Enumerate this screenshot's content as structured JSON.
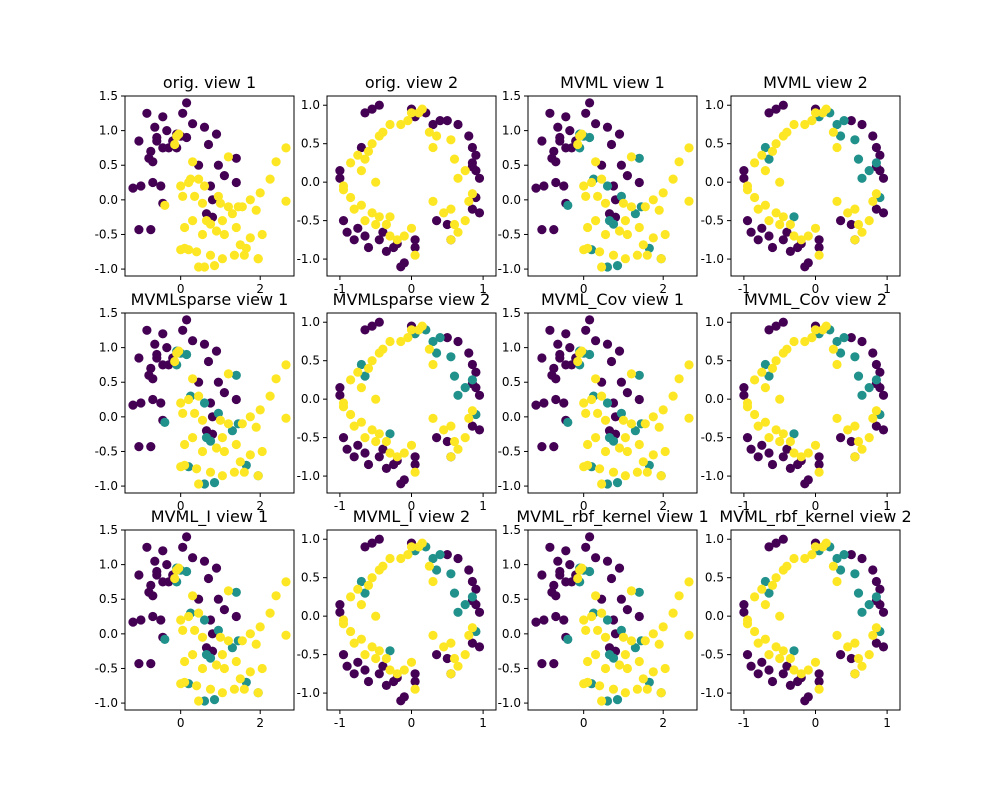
{
  "colors": {
    "class_0": "#440154",
    "class_1": "#21918c",
    "class_2": "#fde725",
    "axis": "#000000"
  },
  "chart_data": [
    {
      "type": "scatter",
      "title": "orig. view 1",
      "view": 1,
      "xticks": [
        0,
        2
      ],
      "yticks": [
        -1.0,
        -0.5,
        0.0,
        0.5,
        1.0,
        1.5
      ],
      "xlim": [
        -1.4,
        2.85
      ],
      "ylim": [
        -1.1,
        1.5
      ],
      "points": []
    },
    {
      "type": "scatter",
      "title": "orig. view 2",
      "view": 2,
      "xticks": [
        -1,
        0,
        1
      ],
      "yticks": [
        -1.0,
        -0.5,
        0.0,
        0.5,
        1.0
      ],
      "xlim": [
        -1.18,
        1.18
      ],
      "ylim": [
        -1.22,
        1.12
      ],
      "points": []
    },
    {
      "type": "scatter",
      "title": "MVML view 1",
      "view": 1,
      "xticks": [
        0,
        2
      ],
      "yticks": [
        -1.0,
        -0.5,
        0.0,
        0.5,
        1.0,
        1.5
      ],
      "xlim": [
        -1.4,
        2.85
      ],
      "ylim": [
        -1.1,
        1.5
      ],
      "points": []
    },
    {
      "type": "scatter",
      "title": "MVML view 2",
      "view": 2,
      "xticks": [
        -1,
        0,
        1
      ],
      "yticks": [
        -1.0,
        -0.5,
        0.0,
        0.5,
        1.0
      ],
      "xlim": [
        -1.18,
        1.18
      ],
      "ylim": [
        -1.22,
        1.12
      ],
      "points": []
    },
    {
      "type": "scatter",
      "title": "MVMLsparse view 1",
      "view": 1,
      "xticks": [
        0,
        2
      ],
      "yticks": [
        -1.0,
        -0.5,
        0.0,
        0.5,
        1.0,
        1.5
      ],
      "xlim": [
        -1.4,
        2.85
      ],
      "ylim": [
        -1.1,
        1.5
      ],
      "points": []
    },
    {
      "type": "scatter",
      "title": "MVMLsparse view 2",
      "view": 2,
      "xticks": [
        -1,
        0,
        1
      ],
      "yticks": [
        -1.0,
        -0.5,
        0.0,
        0.5,
        1.0
      ],
      "xlim": [
        -1.18,
        1.18
      ],
      "ylim": [
        -1.22,
        1.12
      ],
      "points": []
    },
    {
      "type": "scatter",
      "title": "MVML_Cov view 1",
      "view": 1,
      "xticks": [
        0,
        2
      ],
      "yticks": [
        -1.0,
        -0.5,
        0.0,
        0.5,
        1.0,
        1.5
      ],
      "xlim": [
        -1.4,
        2.85
      ],
      "ylim": [
        -1.1,
        1.5
      ],
      "points": []
    },
    {
      "type": "scatter",
      "title": "MVML_Cov view 2",
      "view": 2,
      "xticks": [
        -1,
        0,
        1
      ],
      "yticks": [
        -1.0,
        -0.5,
        0.0,
        0.5,
        1.0
      ],
      "xlim": [
        -1.18,
        1.18
      ],
      "ylim": [
        -1.22,
        1.12
      ],
      "points": []
    },
    {
      "type": "scatter",
      "title": "MVML_I view 1",
      "view": 1,
      "xticks": [
        0,
        2
      ],
      "yticks": [
        -1.0,
        -0.5,
        0.0,
        0.5,
        1.0,
        1.5
      ],
      "xlim": [
        -1.4,
        2.85
      ],
      "ylim": [
        -1.1,
        1.5
      ],
      "points": []
    },
    {
      "type": "scatter",
      "title": "MVML_I view 2",
      "view": 2,
      "xticks": [
        -1,
        0,
        1
      ],
      "yticks": [
        -1.0,
        -0.5,
        0.0,
        0.5,
        1.0
      ],
      "xlim": [
        -1.18,
        1.18
      ],
      "ylim": [
        -1.22,
        1.12
      ],
      "points": []
    },
    {
      "type": "scatter",
      "title": "MVML_rbf_kernel view 1",
      "view": 1,
      "xticks": [
        0,
        2
      ],
      "yticks": [
        -1.0,
        -0.5,
        0.0,
        0.5,
        1.0,
        1.5
      ],
      "xlim": [
        -1.4,
        2.85
      ],
      "ylim": [
        -1.1,
        1.5
      ],
      "points": []
    },
    {
      "type": "scatter",
      "title": "MVML_rbf_kernel view 2",
      "view": 2,
      "xticks": [
        -1,
        0,
        1
      ],
      "yticks": [
        -1.0,
        -0.5,
        0.0,
        0.5,
        1.0
      ],
      "xlim": [
        -1.18,
        1.18
      ],
      "ylim": [
        -1.22,
        1.12
      ],
      "points": []
    }
  ],
  "points_view1": [
    [
      -1.2,
      0.17,
      0
    ],
    [
      -1.0,
      0.2,
      0
    ],
    [
      -0.7,
      0.25,
      0
    ],
    [
      -1.05,
      0.85,
      0
    ],
    [
      -0.8,
      0.6,
      0
    ],
    [
      -0.75,
      0.7,
      0
    ],
    [
      -0.6,
      0.9,
      0
    ],
    [
      -0.85,
      1.25,
      0
    ],
    [
      -0.45,
      1.2,
      0
    ],
    [
      -0.65,
      1.05,
      0
    ],
    [
      -0.6,
      0.85,
      0
    ],
    [
      -0.35,
      1.0,
      0
    ],
    [
      -0.45,
      0.75,
      0
    ],
    [
      -0.2,
      0.85,
      0
    ],
    [
      0.05,
      1.25,
      0
    ],
    [
      0.15,
      1.4,
      0
    ],
    [
      0.3,
      1.1,
      0
    ],
    [
      0.6,
      1.05,
      0
    ],
    [
      0.7,
      0.8,
      0
    ],
    [
      0.9,
      0.95,
      0
    ],
    [
      0.45,
      0.5,
      0
    ],
    [
      0.95,
      0.5,
      0
    ],
    [
      1.1,
      0.35,
      0
    ],
    [
      0.75,
      0.2,
      0
    ],
    [
      0.8,
      0.0,
      0
    ],
    [
      0.65,
      -0.2,
      0
    ],
    [
      0.8,
      -0.25,
      0
    ],
    [
      -0.5,
      0.2,
      0
    ],
    [
      -0.45,
      -0.05,
      0
    ],
    [
      -1.05,
      -0.43,
      0
    ],
    [
      -0.75,
      -0.43,
      0
    ],
    [
      1.4,
      0.25,
      0
    ],
    [
      -0.7,
      0.55,
      0
    ],
    [
      -0.3,
      0.75,
      0
    ],
    [
      -0.1,
      0.95,
      1
    ],
    [
      0.0,
      0.92,
      1
    ],
    [
      -0.1,
      0.75,
      1
    ],
    [
      0.15,
      0.9,
      1
    ],
    [
      0.25,
      0.3,
      1
    ],
    [
      0.6,
      0.2,
      1
    ],
    [
      0.95,
      0.05,
      1
    ],
    [
      1.4,
      0.6,
      1
    ],
    [
      1.45,
      -0.1,
      1
    ],
    [
      0.65,
      -0.3,
      1
    ],
    [
      0.75,
      -0.35,
      1
    ],
    [
      1.3,
      -0.2,
      1
    ],
    [
      -0.4,
      -0.08,
      1
    ],
    [
      0.2,
      -0.72,
      1
    ],
    [
      0.6,
      -0.97,
      1
    ],
    [
      0.85,
      -0.95,
      1
    ],
    [
      1.65,
      -0.7,
      1
    ],
    [
      1.95,
      -0.85,
      1
    ],
    [
      -0.1,
      0.92,
      2
    ],
    [
      -0.15,
      0.8,
      2
    ],
    [
      0.0,
      0.2,
      2
    ],
    [
      0.2,
      0.25,
      2
    ],
    [
      0.45,
      0.3,
      2
    ],
    [
      0.05,
      0.05,
      2
    ],
    [
      0.35,
      0.05,
      2
    ],
    [
      0.55,
      -0.05,
      2
    ],
    [
      1.0,
      -0.05,
      2
    ],
    [
      1.2,
      -0.1,
      2
    ],
    [
      1.55,
      -0.1,
      2
    ],
    [
      1.75,
      0.0,
      2
    ],
    [
      1.9,
      -0.15,
      2
    ],
    [
      2.0,
      0.1,
      2
    ],
    [
      2.25,
      0.3,
      2
    ],
    [
      2.4,
      0.55,
      2
    ],
    [
      2.65,
      0.75,
      2
    ],
    [
      2.65,
      -0.02,
      2
    ],
    [
      2.05,
      -0.5,
      2
    ],
    [
      1.75,
      -0.55,
      2
    ],
    [
      1.4,
      -0.4,
      2
    ],
    [
      1.5,
      -0.65,
      2
    ],
    [
      1.1,
      -0.5,
      2
    ],
    [
      1.05,
      -0.3,
      2
    ],
    [
      0.9,
      -0.45,
      2
    ],
    [
      0.55,
      -0.5,
      2
    ],
    [
      0.3,
      -0.3,
      2
    ],
    [
      0.1,
      -0.4,
      2
    ],
    [
      0.1,
      -0.7,
      2
    ],
    [
      0.4,
      -0.75,
      2
    ],
    [
      0.45,
      -0.97,
      2
    ],
    [
      0.75,
      -0.8,
      2
    ],
    [
      1.05,
      -0.85,
      2
    ],
    [
      1.35,
      -0.8,
      2
    ],
    [
      1.6,
      -0.8,
      2
    ],
    [
      1.95,
      -0.85,
      2
    ],
    [
      1.2,
      0.62,
      2
    ],
    [
      0.3,
      0.55,
      2
    ],
    [
      -0.05,
      0.95,
      2
    ],
    [
      0.0,
      -0.72,
      2
    ]
  ],
  "points_view2": [
    [
      -0.95,
      -0.5,
      0
    ],
    [
      -0.9,
      -0.65,
      0
    ],
    [
      -0.8,
      -0.75,
      0
    ],
    [
      -0.75,
      -0.6,
      0
    ],
    [
      -0.65,
      -0.7,
      0
    ],
    [
      -0.6,
      -0.85,
      0
    ],
    [
      -0.45,
      -0.75,
      0
    ],
    [
      -0.35,
      -0.9,
      0
    ],
    [
      -0.25,
      -0.85,
      0
    ],
    [
      -0.15,
      -1.1,
      0
    ],
    [
      -0.1,
      -1.05,
      0
    ],
    [
      0.05,
      -0.75,
      0
    ],
    [
      0.05,
      -0.85,
      0
    ],
    [
      -0.4,
      -0.65,
      0
    ],
    [
      -0.2,
      -0.8,
      0
    ],
    [
      -1.0,
      0.15,
      0
    ],
    [
      -1.0,
      0.05,
      0
    ],
    [
      -0.65,
      0.9,
      0
    ],
    [
      -0.55,
      0.95,
      0
    ],
    [
      -0.45,
      1.0,
      0
    ],
    [
      0.0,
      0.95,
      0
    ],
    [
      0.5,
      0.8,
      0
    ],
    [
      0.65,
      0.75,
      0
    ],
    [
      0.8,
      0.6,
      0
    ],
    [
      0.85,
      0.45,
      0
    ],
    [
      0.9,
      0.35,
      0
    ],
    [
      0.9,
      0.15,
      0
    ],
    [
      0.95,
      0.05,
      0
    ],
    [
      0.85,
      0.2,
      0
    ],
    [
      0.85,
      -0.35,
      0
    ],
    [
      0.95,
      -0.4,
      0
    ],
    [
      0.55,
      -0.75,
      0
    ],
    [
      0.5,
      -0.55,
      0
    ],
    [
      0.35,
      -0.5,
      0
    ],
    [
      0.2,
      0.9,
      1
    ],
    [
      0.4,
      0.8,
      1
    ],
    [
      0.35,
      0.6,
      1
    ],
    [
      0.55,
      0.55,
      1
    ],
    [
      0.6,
      0.3,
      1
    ],
    [
      0.75,
      0.15,
      1
    ],
    [
      0.85,
      0.25,
      1
    ],
    [
      0.9,
      -0.2,
      1
    ],
    [
      -0.3,
      -0.45,
      1
    ],
    [
      -0.65,
      0.3,
      1
    ],
    [
      -0.7,
      0.45,
      1
    ],
    [
      0.05,
      0.85,
      1
    ],
    [
      0.3,
      0.75,
      1
    ],
    [
      0.65,
      0.05,
      1
    ],
    [
      -0.95,
      -0.05,
      2
    ],
    [
      -0.95,
      -0.1,
      2
    ],
    [
      -0.85,
      0.25,
      2
    ],
    [
      -0.75,
      0.35,
      2
    ],
    [
      -0.6,
      0.4,
      2
    ],
    [
      -0.55,
      0.5,
      2
    ],
    [
      -0.45,
      0.6,
      2
    ],
    [
      -0.4,
      0.65,
      2
    ],
    [
      -0.3,
      0.75,
      2
    ],
    [
      -0.15,
      0.75,
      2
    ],
    [
      -0.05,
      0.8,
      2
    ],
    [
      0.0,
      0.9,
      2
    ],
    [
      0.1,
      0.9,
      2
    ],
    [
      0.15,
      0.95,
      2
    ],
    [
      0.25,
      0.65,
      2
    ],
    [
      0.3,
      0.45,
      2
    ],
    [
      -0.85,
      -0.2,
      2
    ],
    [
      -0.8,
      -0.35,
      2
    ],
    [
      -0.7,
      -0.3,
      2
    ],
    [
      -0.65,
      -0.5,
      2
    ],
    [
      -0.55,
      -0.4,
      2
    ],
    [
      -0.5,
      -0.55,
      2
    ],
    [
      -0.45,
      -0.45,
      2
    ],
    [
      -0.35,
      -0.55,
      2
    ],
    [
      -0.3,
      -0.7,
      2
    ],
    [
      -0.2,
      -0.75,
      2
    ],
    [
      -0.1,
      -0.7,
      2
    ],
    [
      0.0,
      -0.6,
      2
    ],
    [
      0.3,
      -0.25,
      2
    ],
    [
      0.45,
      -0.4,
      2
    ],
    [
      0.55,
      -0.35,
      2
    ],
    [
      0.6,
      -0.55,
      2
    ],
    [
      0.65,
      -0.65,
      2
    ],
    [
      0.75,
      -0.5,
      2
    ],
    [
      0.8,
      -0.25,
      2
    ],
    [
      0.85,
      -0.15,
      2
    ],
    [
      0.55,
      -0.75,
      2
    ],
    [
      -0.5,
      0.0,
      2
    ],
    [
      -0.7,
      0.15,
      2
    ],
    [
      0.05,
      -0.95,
      2
    ]
  ]
}
